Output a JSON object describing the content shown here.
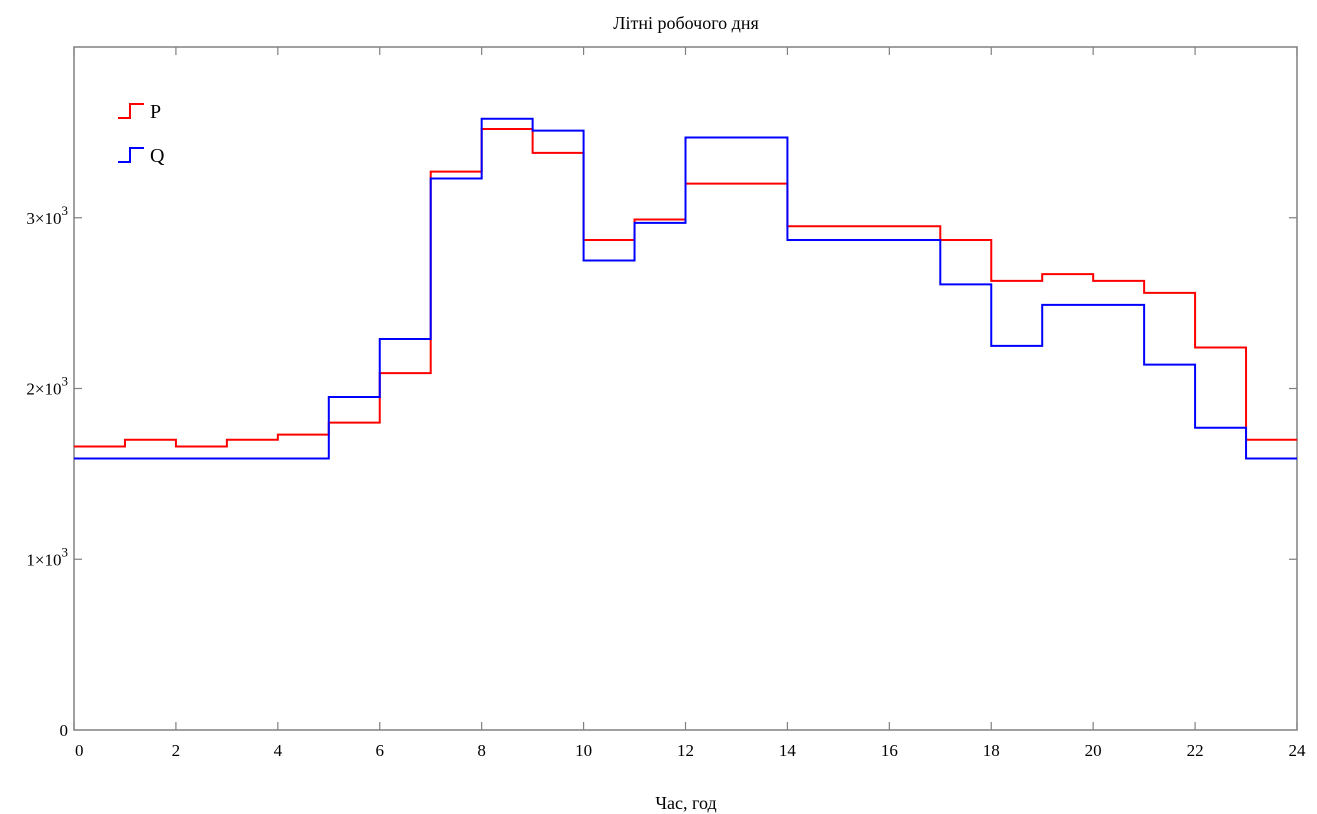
{
  "chart_data": {
    "type": "line",
    "step": true,
    "title": "Літні робочого дня",
    "xlabel": "Час, год",
    "ylabel": "",
    "xlim": [
      0,
      24
    ],
    "ylim": [
      0,
      4000
    ],
    "x_ticks": [
      0,
      2,
      4,
      6,
      8,
      10,
      12,
      14,
      16,
      18,
      20,
      22,
      24
    ],
    "y_ticks": [
      {
        "value": 0,
        "mantissa": "0",
        "exponent": ""
      },
      {
        "value": 1000,
        "mantissa": "1×10",
        "exponent": "3"
      },
      {
        "value": 2000,
        "mantissa": "2×10",
        "exponent": "3"
      },
      {
        "value": 3000,
        "mantissa": "3×10",
        "exponent": "3"
      }
    ],
    "grid": false,
    "legend_position": "top-left",
    "x": [
      0,
      1,
      2,
      3,
      4,
      5,
      6,
      7,
      8,
      9,
      10,
      11,
      12,
      13,
      14,
      15,
      16,
      17,
      18,
      19,
      20,
      21,
      22,
      23
    ],
    "series": [
      {
        "name": "P",
        "color": "#ff0000",
        "values": [
          1660,
          1700,
          1660,
          1700,
          1730,
          1800,
          2090,
          3270,
          3520,
          3380,
          2870,
          2990,
          3200,
          3200,
          2950,
          2950,
          2950,
          2870,
          2630,
          2670,
          2630,
          2560,
          2240,
          1700
        ]
      },
      {
        "name": "Q",
        "color": "#0000ff",
        "values": [
          1590,
          1590,
          1590,
          1590,
          1590,
          1950,
          2290,
          3230,
          3580,
          3510,
          2750,
          2970,
          3470,
          3470,
          2870,
          2870,
          2870,
          2610,
          2250,
          2490,
          2490,
          2140,
          1770,
          1590
        ]
      }
    ]
  }
}
